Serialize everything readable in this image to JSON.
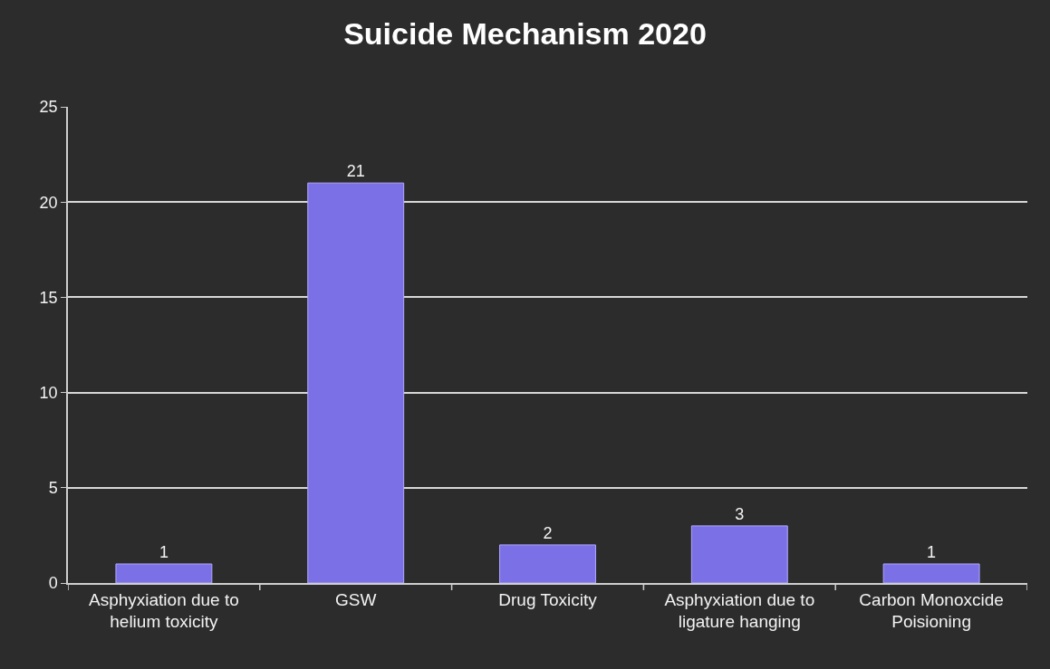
{
  "chart_data": {
    "type": "bar",
    "title": "Suicide Mechanism 2020",
    "categories": [
      "Asphyxiation due to helium toxicity",
      "GSW",
      "Drug Toxicity",
      "Asphyxiation due to ligature hanging",
      "Carbon Monoxcide Poisioning"
    ],
    "values": [
      1,
      21,
      2,
      3,
      1
    ],
    "color": "#7b70e6",
    "ylim": [
      0,
      25
    ],
    "yticks": [
      0,
      5,
      10,
      15,
      20,
      25
    ],
    "grid": "y",
    "data_labels": true
  }
}
